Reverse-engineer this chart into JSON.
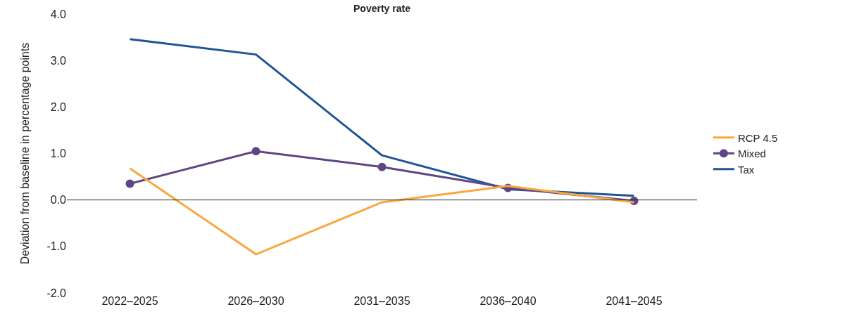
{
  "chart_data": {
    "type": "line",
    "title": "Poverty rate",
    "ylabel": "Deviation from baseline in percentage points",
    "categories": [
      "2022–2025",
      "2026–2030",
      "2031–2035",
      "2036–2040",
      "2041–2045"
    ],
    "series": [
      {
        "name": "RCP 4.5",
        "color": "#f9a73e",
        "values": [
          0.68,
          -1.17,
          -0.05,
          0.3,
          -0.05
        ],
        "marker": "none"
      },
      {
        "name": "Mixed",
        "color": "#5e4585",
        "values": [
          0.35,
          1.05,
          0.71,
          0.26,
          -0.02
        ],
        "marker": "circle"
      },
      {
        "name": "Tax",
        "color": "#1f5597",
        "values": [
          3.46,
          3.13,
          0.96,
          0.23,
          0.09
        ],
        "marker": "none"
      }
    ],
    "ylim": [
      -2,
      4
    ],
    "yticks": [
      {
        "value": -2,
        "label": "-2.0"
      },
      {
        "value": -1,
        "label": "-1.0"
      },
      {
        "value": 0,
        "label": "0.0"
      },
      {
        "value": 1,
        "label": "1.0"
      },
      {
        "value": 2,
        "label": "2.0"
      },
      {
        "value": 3,
        "label": "3.0"
      },
      {
        "value": 4,
        "label": "4.0"
      }
    ],
    "ref_lines": [
      {
        "axis": "y",
        "value": 0,
        "color": "#333333"
      }
    ],
    "grid": false,
    "legend": "right"
  }
}
